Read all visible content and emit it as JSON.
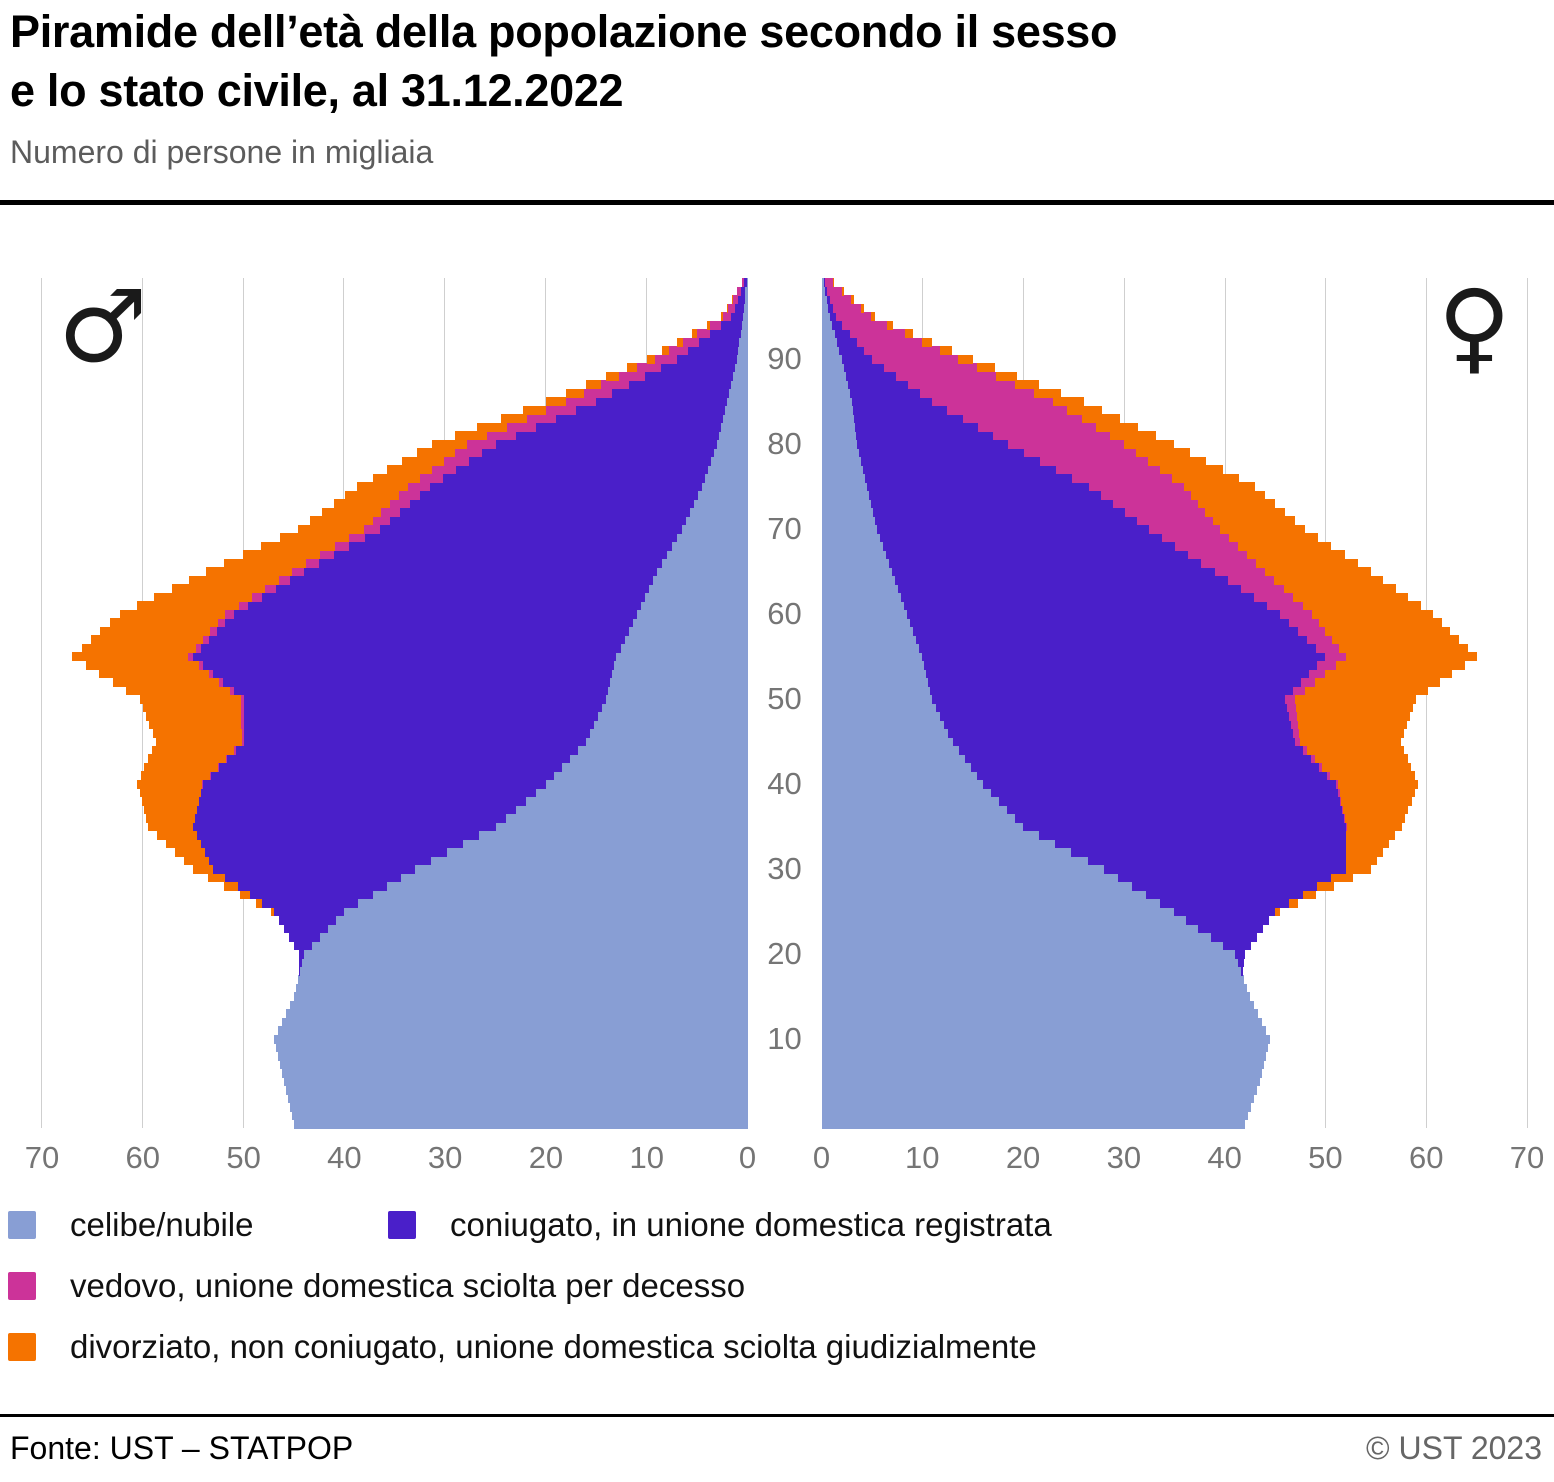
{
  "header": {
    "title_line1": "Piramide dell’età della popolazione secondo il sesso",
    "title_line2": "e lo stato civile, al 31.12.2022",
    "subtitle": "Numero di persone in migliaia"
  },
  "symbols": {
    "male": "♂",
    "female": "♀"
  },
  "axis": {
    "tick_values": [
      0,
      10,
      20,
      30,
      40,
      50,
      60,
      70
    ],
    "age_ticks": [
      10,
      20,
      30,
      40,
      50,
      60,
      70,
      80,
      90
    ],
    "max_value": 70
  },
  "legend": {
    "items": [
      {
        "key": "single",
        "label": "celibe/nubile",
        "color": "#889ed4"
      },
      {
        "key": "married",
        "label": "coniugato, in unione domestica registrata",
        "color": "#4a1fc9"
      },
      {
        "key": "widowed",
        "label": "vedovo, unione domestica sciolta per decesso",
        "color": "#cc3399"
      },
      {
        "key": "divorced",
        "label": "divorziato, non coniugato, unione domestica sciolta giudizialmente",
        "color": "#f57300"
      }
    ]
  },
  "footer": {
    "source": "Fonte: UST – STATPOP",
    "copyright": "© UST 2023"
  },
  "chart_data": {
    "type": "bar",
    "orientation": "population-pyramid",
    "title": "Piramide dell’età della popolazione secondo il sesso e lo stato civile, al 31.12.2022",
    "unit": "migliaia di persone",
    "x_range": [
      0,
      70
    ],
    "age_min": 0,
    "age_max": 99,
    "grid": "vertical, every 10",
    "legend_position": "bottom",
    "series_order": [
      "single",
      "married",
      "widowed",
      "divorced"
    ],
    "male": {
      "single": [
        45,
        45.2,
        45.4,
        45.6,
        45.8,
        46,
        46.2,
        46.4,
        46.6,
        46.8,
        47,
        46.6,
        46.2,
        45.8,
        45.4,
        45,
        44.8,
        44.6,
        44.4,
        44.2,
        44,
        43.2,
        42.4,
        41.6,
        40.8,
        40,
        38.6,
        37.2,
        35.8,
        34.4,
        33,
        31.4,
        29.8,
        28.2,
        26.6,
        25,
        24,
        23,
        22,
        21,
        20,
        19.2,
        18.4,
        17.6,
        16.8,
        16,
        15.6,
        15.2,
        14.8,
        14.4,
        14,
        13.8,
        13.6,
        13.4,
        13.2,
        13,
        12.6,
        12.2,
        11.8,
        11.4,
        11,
        10.6,
        10.2,
        9.8,
        9.4,
        9,
        8.5,
        8,
        7.5,
        7,
        6.5,
        6.1,
        5.7,
        5.3,
        4.9,
        4.5,
        4.2,
        3.9,
        3.6,
        3.3,
        3,
        2.8,
        2.6,
        2.4,
        2.2,
        2,
        1.8,
        1.6,
        1.4,
        1.2,
        1,
        0.9,
        0.8,
        0.6,
        0.5,
        0.4,
        0.3,
        0.25,
        0.2,
        0.1
      ],
      "married": [
        0,
        0,
        0,
        0,
        0,
        0,
        0,
        0,
        0,
        0,
        0,
        0,
        0,
        0,
        0,
        0,
        0,
        0,
        0.1,
        0.3,
        0.5,
        1.8,
        3.1,
        4.4,
        5.7,
        7,
        9.6,
        12.2,
        14.8,
        17.4,
        20,
        22,
        24,
        26,
        28,
        30,
        30.8,
        31.6,
        32.4,
        33.2,
        34,
        34,
        34,
        34,
        34,
        34,
        34.4,
        34.8,
        35.2,
        35.6,
        36,
        37.2,
        38.4,
        39.6,
        40.8,
        42,
        41.6,
        41.2,
        40.8,
        40.4,
        40,
        39,
        38,
        37,
        36,
        35,
        34,
        33,
        32,
        31,
        30,
        29.4,
        28.8,
        28.2,
        27.6,
        27,
        26,
        25,
        24,
        23,
        22,
        20.2,
        18.4,
        16.6,
        14.8,
        13,
        11.6,
        10.2,
        8.8,
        7.4,
        6,
        5,
        4,
        3.1,
        2.1,
        1.2,
        0.95,
        0.7,
        0.45,
        0.2
      ],
      "widowed": [
        0,
        0,
        0,
        0,
        0,
        0,
        0,
        0,
        0,
        0,
        0,
        0,
        0,
        0,
        0,
        0,
        0,
        0,
        0,
        0,
        0,
        0,
        0,
        0,
        0,
        0,
        0,
        0,
        0,
        0,
        0,
        0,
        0,
        0,
        0,
        0,
        0,
        0,
        0,
        0,
        0.1,
        0.1,
        0.15,
        0.15,
        0.2,
        0.2,
        0.2,
        0.25,
        0.25,
        0.3,
        0.3,
        0.35,
        0.4,
        0.4,
        0.45,
        0.5,
        0.55,
        0.6,
        0.7,
        0.75,
        0.8,
        0.9,
        1,
        1.05,
        1.1,
        1.2,
        1.3,
        1.4,
        1.45,
        1.5,
        1.6,
        1.7,
        1.85,
        1.95,
        2.1,
        2.2,
        2.3,
        2.45,
        2.55,
        2.7,
        2.8,
        2.85,
        2.9,
        2.9,
        2.95,
        3,
        2.85,
        2.7,
        2.55,
        2.35,
        2.2,
        1.9,
        1.65,
        1.35,
        1.1,
        0.8,
        0.65,
        0.5,
        0.35,
        0.2
      ],
      "divorced": [
        0,
        0,
        0,
        0,
        0,
        0,
        0,
        0,
        0,
        0,
        0,
        0,
        0,
        0,
        0,
        0,
        0,
        0,
        0,
        0,
        0,
        0,
        0,
        0,
        0,
        0.3,
        0.6,
        1,
        1.3,
        1.7,
        2,
        2.5,
        3,
        3.5,
        4,
        4.5,
        4.9,
        5.3,
        5.7,
        6.1,
        6.5,
        6.9,
        7.3,
        7.7,
        8.1,
        8.5,
        8.8,
        9.1,
        9.4,
        9.7,
        10,
        10.3,
        10.6,
        10.9,
        11.2,
        11.5,
        11.3,
        11.1,
        10.9,
        10.7,
        10.5,
        10.1,
        9.7,
        9.3,
        8.9,
        8.5,
        8.1,
        7.7,
        7.3,
        6.9,
        6.5,
        6.2,
        5.9,
        5.6,
        5.3,
        5,
        4.7,
        4.4,
        4.1,
        3.8,
        3.5,
        3.2,
        2.9,
        2.6,
        2.3,
        2,
        1.75,
        1.5,
        1.3,
        1,
        0.8,
        0.7,
        0.55,
        0.45,
        0.3,
        0.2,
        0.15,
        0.1,
        0.05,
        0
      ]
    },
    "female": {
      "single": [
        42,
        42.3,
        42.6,
        42.9,
        43.2,
        43.5,
        43.7,
        43.9,
        44.1,
        44.3,
        44.5,
        44.1,
        43.7,
        43.3,
        42.9,
        42.5,
        42.2,
        41.9,
        41.6,
        41.3,
        41,
        39.8,
        38.6,
        37.4,
        36.2,
        35,
        33.6,
        32.2,
        30.8,
        29.4,
        28,
        26.4,
        24.8,
        23.2,
        21.6,
        20,
        19.2,
        18.4,
        17.6,
        16.8,
        16,
        15.4,
        14.8,
        14.2,
        13.6,
        13,
        12.6,
        12.2,
        11.8,
        11.4,
        11,
        10.8,
        10.6,
        10.4,
        10.2,
        10,
        9.7,
        9.4,
        9.1,
        8.8,
        8.5,
        8.2,
        7.9,
        7.6,
        7.3,
        7,
        6.7,
        6.4,
        6.1,
        5.8,
        5.5,
        5.3,
        5.1,
        4.9,
        4.7,
        4.5,
        4.3,
        4.1,
        3.9,
        3.7,
        3.5,
        3.4,
        3.3,
        3.2,
        3.1,
        3,
        2.8,
        2.6,
        2.4,
        2.2,
        2,
        1.75,
        1.5,
        1.3,
        1,
        0.8,
        0.65,
        0.5,
        0.35,
        0.2
      ],
      "married": [
        0,
        0,
        0,
        0,
        0,
        0,
        0,
        0,
        0,
        0,
        0,
        0,
        0,
        0,
        0,
        0,
        0,
        0,
        0.2,
        0.6,
        1,
        2.8,
        4.6,
        6.4,
        8.2,
        10,
        12.8,
        15.6,
        18.4,
        21.2,
        24,
        25.6,
        27.2,
        28.8,
        30.4,
        32,
        32.6,
        33.2,
        33.8,
        34.4,
        35,
        34.8,
        34.6,
        34.4,
        34.2,
        34,
        34.2,
        34.4,
        34.6,
        34.8,
        35,
        36,
        37,
        38,
        39,
        40,
        39.4,
        38.8,
        38.2,
        37.6,
        37,
        36,
        35,
        34,
        33,
        32,
        31,
        30,
        29,
        28,
        27,
        26,
        25,
        24,
        23,
        22,
        20.6,
        19.2,
        17.8,
        16.4,
        15,
        13.6,
        12.2,
        10.8,
        9.4,
        8,
        7,
        6,
        5,
        4,
        3,
        2.5,
        2,
        1.5,
        1,
        0.6,
        0.5,
        0.35,
        0.2,
        0.1
      ],
      "widowed": [
        0,
        0,
        0,
        0,
        0,
        0,
        0,
        0,
        0,
        0,
        0,
        0,
        0,
        0,
        0,
        0,
        0,
        0,
        0,
        0,
        0,
        0,
        0,
        0,
        0,
        0,
        0,
        0,
        0,
        0,
        0,
        0,
        0,
        0,
        0,
        0.1,
        0.1,
        0.1,
        0.15,
        0.2,
        0.2,
        0.25,
        0.3,
        0.35,
        0.4,
        0.5,
        0.6,
        0.7,
        0.8,
        0.9,
        1,
        1.2,
        1.4,
        1.6,
        1.8,
        2,
        2.2,
        2.5,
        2.7,
        3,
        3.2,
        3.6,
        3.9,
        4.3,
        4.6,
        5,
        5.4,
        5.8,
        6.2,
        6.6,
        7,
        7.5,
        8,
        8.5,
        9,
        9.5,
        9.9,
        10.3,
        10.7,
        11.1,
        11.5,
        11.6,
        11.7,
        11.8,
        11.9,
        12,
        11.3,
        10.6,
        9.9,
        9.2,
        8.5,
        7.5,
        6.5,
        5.5,
        4.5,
        3.5,
        2.8,
        2.1,
        1.5,
        0.8
      ],
      "divorced": [
        0,
        0,
        0,
        0,
        0,
        0,
        0,
        0,
        0,
        0,
        0,
        0,
        0,
        0,
        0,
        0,
        0,
        0,
        0,
        0,
        0,
        0,
        0,
        0,
        0,
        0.5,
        0.9,
        1.3,
        1.7,
        2.1,
        2.5,
        3.1,
        3.7,
        4.3,
        4.9,
        5.5,
        6,
        6.5,
        7,
        7.5,
        8,
        8.4,
        8.8,
        9.2,
        9.6,
        10,
        10.4,
        10.8,
        11.2,
        11.6,
        12,
        12.2,
        12.4,
        12.6,
        12.8,
        13,
        12.8,
        12.6,
        12.4,
        12.2,
        12,
        11.7,
        11.4,
        11.1,
        10.8,
        10.5,
        10.1,
        9.7,
        9.3,
        8.9,
        8.5,
        8.2,
        7.9,
        7.6,
        7.3,
        7,
        6.6,
        6.2,
        5.8,
        5.4,
        5,
        4.6,
        4.2,
        3.8,
        3.4,
        3,
        2.7,
        2.4,
        2.1,
        1.8,
        1.5,
        1.2,
        1,
        0.8,
        0.6,
        0.4,
        0.3,
        0.25,
        0.15,
        0.1
      ]
    }
  }
}
